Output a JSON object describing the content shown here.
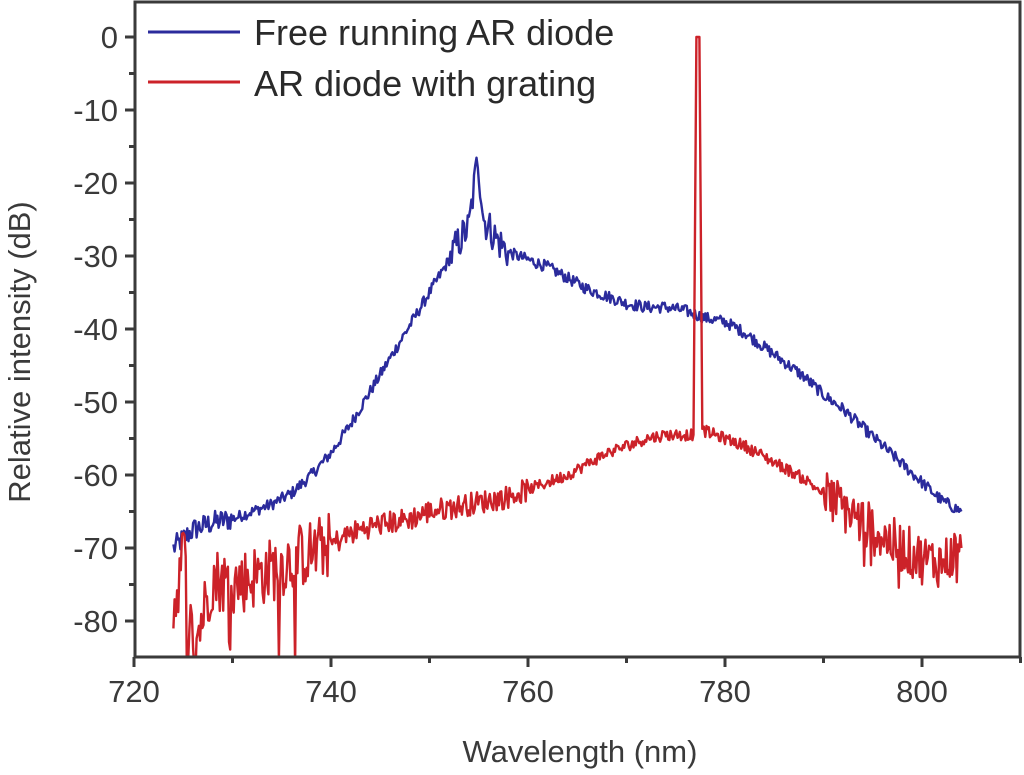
{
  "chart_data": {
    "type": "line",
    "title": "",
    "xlabel": "Wavelength (nm)",
    "ylabel": "Relative intensity (dB)",
    "xlim": [
      720,
      810
    ],
    "ylim": [
      -85,
      5
    ],
    "x_ticks": [
      720,
      740,
      760,
      780,
      800
    ],
    "x_minor_ticks": [
      730,
      750,
      770,
      790,
      810
    ],
    "y_ticks": [
      0,
      -10,
      -20,
      -30,
      -40,
      -50,
      -60,
      -70,
      -80
    ],
    "y_minor_ticks": [
      -5,
      -15,
      -25,
      -35,
      -45,
      -55,
      -65,
      -75
    ],
    "grid": false,
    "legend_position": "upper left",
    "series": [
      {
        "name": "Free running AR diode",
        "color": "#2b2b9c",
        "x": [
          724,
          726,
          728,
          730,
          732,
          734,
          736,
          738,
          740,
          742,
          744,
          746,
          748,
          750,
          752,
          753,
          754,
          754.9,
          755.5,
          756,
          757,
          758,
          760,
          762,
          764,
          766,
          768,
          770,
          772,
          774,
          776,
          778,
          780,
          782,
          784,
          786,
          788,
          790,
          792,
          794,
          796,
          798,
          800,
          802,
          804
        ],
        "y": [
          -70,
          -67.5,
          -66.5,
          -66,
          -65,
          -64,
          -62.5,
          -60,
          -57,
          -53,
          -48.5,
          -44,
          -39.5,
          -35,
          -30.5,
          -28,
          -26,
          -16.5,
          -25,
          -26,
          -28,
          -29.5,
          -30.5,
          -31.5,
          -33,
          -34.5,
          -35.5,
          -36.5,
          -37,
          -37,
          -37.5,
          -38.5,
          -39,
          -40.5,
          -42.5,
          -44.5,
          -46.5,
          -49,
          -51,
          -53.5,
          -56,
          -58.5,
          -61,
          -63.5,
          -65
        ]
      },
      {
        "name": "AR diode with grating",
        "color": "#cc2229",
        "x": [
          724,
          725,
          726,
          728,
          730,
          732,
          734,
          736,
          738,
          740,
          742,
          744,
          746,
          748,
          750,
          752,
          754,
          756,
          758,
          760,
          762,
          764,
          766,
          768,
          770,
          772,
          774,
          776,
          776.8,
          777.1,
          777.4,
          777.7,
          778,
          780,
          782,
          784,
          786,
          788,
          790,
          792,
          794,
          796,
          798,
          800,
          802,
          804
        ],
        "y": [
          -79,
          -70,
          -84,
          -74,
          -75,
          -74,
          -73,
          -71.5,
          -70.5,
          -69.5,
          -68,
          -67,
          -66.5,
          -66,
          -65,
          -64.5,
          -64,
          -63.5,
          -63,
          -62,
          -61,
          -60,
          -58.5,
          -57,
          -56,
          -55,
          -54.5,
          -54.5,
          -54.5,
          0,
          0,
          -54,
          -54,
          -55,
          -56,
          -57.5,
          -59,
          -60.5,
          -62.5,
          -64.5,
          -66.5,
          -68.5,
          -70,
          -71.5,
          -72,
          -70
        ]
      }
    ],
    "annotations": []
  },
  "legend": {
    "items": [
      {
        "label": "Free running AR diode",
        "color": "#2b2b9c"
      },
      {
        "label": "AR diode with grating",
        "color": "#cc2229"
      }
    ]
  },
  "axes": {
    "x_title": "Wavelength (nm)",
    "y_title": "Relative intensity (dB)",
    "x_tick_labels": [
      "720",
      "740",
      "760",
      "780",
      "800"
    ],
    "y_tick_labels": [
      "0",
      "-10",
      "-20",
      "-30",
      "-40",
      "-50",
      "-60",
      "-70",
      "-80"
    ]
  }
}
